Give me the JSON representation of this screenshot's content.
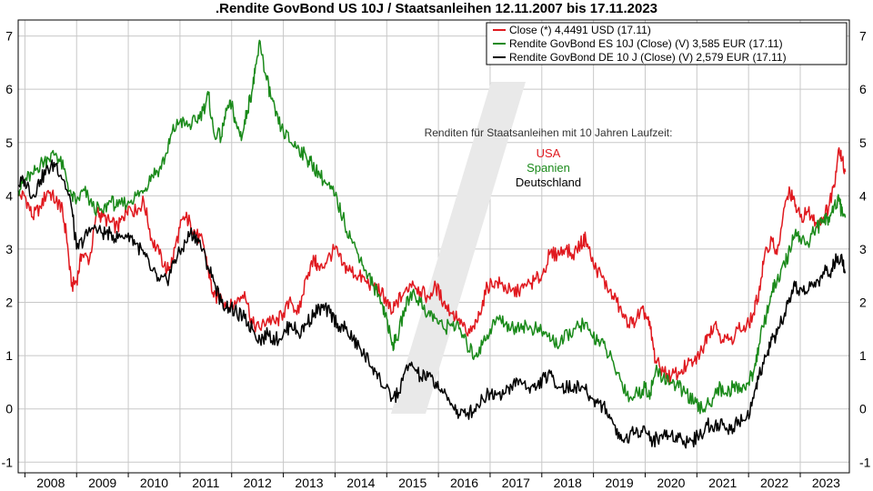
{
  "chart_data": {
    "type": "line",
    "title": ".Rendite GovBond US 10J / Staatsanleihen 12.11.2007 bis 17.11.2023",
    "ylim": [
      -1.2,
      7.3
    ],
    "xlim": [
      2007.87,
      2023.95
    ],
    "y_ticks": [
      -1,
      0,
      1,
      2,
      3,
      4,
      5,
      6,
      7
    ],
    "y_tick_labels": [
      "-1",
      "0",
      "1",
      "2",
      "3",
      "4",
      "5",
      "6",
      "7"
    ],
    "x_ticks": [
      2008,
      2009,
      2010,
      2011,
      2012,
      2013,
      2014,
      2015,
      2016,
      2017,
      2018,
      2019,
      2020,
      2021,
      2022,
      2023
    ],
    "x_tick_labels": [
      "2008",
      "2009",
      "2010",
      "2011",
      "2012",
      "2013",
      "2014",
      "2015",
      "2016",
      "2017",
      "2018",
      "2019",
      "2020",
      "2021",
      "2022",
      "2023"
    ],
    "grid": true,
    "legend_position": "top-right",
    "annotation": {
      "heading": "Renditen für Staatsanleihen mit 10 Jahren Laufzeit:",
      "items": [
        {
          "label": "USA",
          "color": "#e0191f"
        },
        {
          "label": "Spanien",
          "color": "#1a8a1a"
        },
        {
          "label": "Deutschland",
          "color": "#000000"
        }
      ]
    },
    "series": [
      {
        "name": "Close (*) 4,4491 USD (17.11)",
        "color": "#e0191f",
        "x": [
          2007.87,
          2008.0,
          2008.15,
          2008.3,
          2008.45,
          2008.6,
          2008.7,
          2008.8,
          2008.9,
          2009.0,
          2009.1,
          2009.25,
          2009.4,
          2009.5,
          2009.65,
          2009.8,
          2009.9,
          2010.0,
          2010.15,
          2010.3,
          2010.45,
          2010.6,
          2010.75,
          2010.85,
          2011.0,
          2011.1,
          2011.2,
          2011.3,
          2011.45,
          2011.55,
          2011.65,
          2011.8,
          2011.95,
          2012.1,
          2012.25,
          2012.4,
          2012.55,
          2012.7,
          2012.85,
          2013.0,
          2013.15,
          2013.3,
          2013.45,
          2013.6,
          2013.7,
          2013.85,
          2014.0,
          2014.15,
          2014.3,
          2014.45,
          2014.6,
          2014.75,
          2014.9,
          2015.0,
          2015.1,
          2015.2,
          2015.35,
          2015.5,
          2015.65,
          2015.8,
          2015.95,
          2016.1,
          2016.25,
          2016.4,
          2016.55,
          2016.7,
          2016.8,
          2016.95,
          2017.1,
          2017.25,
          2017.4,
          2017.55,
          2017.7,
          2017.85,
          2018.0,
          2018.15,
          2018.3,
          2018.45,
          2018.6,
          2018.75,
          2018.85,
          2019.0,
          2019.15,
          2019.3,
          2019.45,
          2019.6,
          2019.75,
          2019.9,
          2020.0,
          2020.1,
          2020.2,
          2020.35,
          2020.5,
          2020.65,
          2020.8,
          2020.95,
          2021.1,
          2021.2,
          2021.35,
          2021.5,
          2021.65,
          2021.8,
          2021.95,
          2022.1,
          2022.2,
          2022.3,
          2022.45,
          2022.55,
          2022.7,
          2022.8,
          2022.9,
          2023.0,
          2023.15,
          2023.3,
          2023.45,
          2023.55,
          2023.65,
          2023.75,
          2023.8,
          2023.87
        ],
        "values": [
          4.0,
          4.0,
          3.6,
          3.8,
          4.1,
          3.9,
          3.8,
          3.3,
          2.3,
          2.4,
          2.9,
          2.8,
          3.7,
          3.6,
          3.5,
          3.4,
          3.6,
          3.8,
          3.7,
          3.9,
          3.2,
          2.9,
          2.6,
          2.8,
          3.4,
          3.6,
          3.5,
          3.3,
          3.1,
          2.6,
          2.1,
          2.1,
          1.9,
          2.0,
          2.2,
          1.6,
          1.5,
          1.7,
          1.6,
          1.8,
          2.0,
          1.8,
          2.5,
          2.8,
          2.6,
          2.8,
          3.0,
          2.7,
          2.6,
          2.5,
          2.4,
          2.3,
          2.2,
          2.0,
          1.8,
          2.0,
          2.2,
          2.4,
          2.2,
          2.1,
          2.3,
          2.0,
          1.8,
          1.7,
          1.4,
          1.5,
          1.8,
          2.3,
          2.4,
          2.3,
          2.2,
          2.2,
          2.3,
          2.4,
          2.5,
          2.9,
          2.9,
          3.0,
          2.9,
          3.1,
          3.2,
          2.7,
          2.5,
          2.2,
          2.0,
          1.7,
          1.6,
          1.8,
          1.8,
          1.5,
          0.9,
          0.7,
          0.6,
          0.7,
          0.8,
          0.9,
          1.1,
          1.4,
          1.6,
          1.3,
          1.3,
          1.5,
          1.5,
          1.8,
          2.2,
          2.8,
          3.2,
          2.9,
          3.8,
          4.1,
          3.8,
          3.6,
          3.7,
          3.5,
          3.6,
          3.8,
          4.2,
          4.9,
          4.7,
          4.45
        ]
      },
      {
        "name": "Rendite GovBond ES 10J (Close) (V) 3,585 EUR (17.11)",
        "color": "#1a8a1a",
        "x": [
          2007.87,
          2008.0,
          2008.15,
          2008.3,
          2008.45,
          2008.6,
          2008.75,
          2008.9,
          2009.0,
          2009.15,
          2009.3,
          2009.5,
          2009.65,
          2009.8,
          2010.0,
          2010.15,
          2010.3,
          2010.45,
          2010.6,
          2010.75,
          2010.85,
          2011.0,
          2011.15,
          2011.3,
          2011.45,
          2011.55,
          2011.65,
          2011.8,
          2011.9,
          2012.0,
          2012.1,
          2012.2,
          2012.3,
          2012.4,
          2012.45,
          2012.55,
          2012.65,
          2012.75,
          2012.85,
          2013.0,
          2013.15,
          2013.3,
          2013.45,
          2013.55,
          2013.7,
          2013.85,
          2014.0,
          2014.15,
          2014.3,
          2014.45,
          2014.6,
          2014.75,
          2014.9,
          2015.0,
          2015.1,
          2015.2,
          2015.35,
          2015.5,
          2015.65,
          2015.8,
          2015.95,
          2016.1,
          2016.25,
          2016.4,
          2016.55,
          2016.7,
          2016.85,
          2017.0,
          2017.15,
          2017.3,
          2017.45,
          2017.6,
          2017.75,
          2017.9,
          2018.05,
          2018.2,
          2018.35,
          2018.5,
          2018.65,
          2018.8,
          2018.95,
          2019.1,
          2019.25,
          2019.4,
          2019.55,
          2019.7,
          2019.85,
          2020.0,
          2020.1,
          2020.2,
          2020.35,
          2020.5,
          2020.65,
          2020.8,
          2020.95,
          2021.1,
          2021.25,
          2021.4,
          2021.55,
          2021.7,
          2021.85,
          2022.0,
          2022.1,
          2022.2,
          2022.35,
          2022.45,
          2022.55,
          2022.7,
          2022.8,
          2022.9,
          2023.0,
          2023.15,
          2023.3,
          2023.45,
          2023.55,
          2023.65,
          2023.75,
          2023.8,
          2023.87
        ],
        "values": [
          4.1,
          4.3,
          4.4,
          4.6,
          4.7,
          4.8,
          4.5,
          4.0,
          3.9,
          4.1,
          3.8,
          3.7,
          3.9,
          3.8,
          3.9,
          4.0,
          4.1,
          4.4,
          4.5,
          4.8,
          5.2,
          5.4,
          5.3,
          5.4,
          5.6,
          5.9,
          5.2,
          5.1,
          5.6,
          5.7,
          5.3,
          5.1,
          5.6,
          6.0,
          6.3,
          6.9,
          6.3,
          5.9,
          5.5,
          5.2,
          5.0,
          4.9,
          4.7,
          4.6,
          4.4,
          4.2,
          4.0,
          3.6,
          3.2,
          2.9,
          2.6,
          2.3,
          2.0,
          1.7,
          1.2,
          1.3,
          1.9,
          2.2,
          2.0,
          1.8,
          1.7,
          1.5,
          1.6,
          1.5,
          1.2,
          1.0,
          1.2,
          1.5,
          1.7,
          1.6,
          1.5,
          1.6,
          1.5,
          1.5,
          1.4,
          1.3,
          1.2,
          1.4,
          1.5,
          1.6,
          1.4,
          1.3,
          1.1,
          0.8,
          0.5,
          0.2,
          0.3,
          0.4,
          0.3,
          0.7,
          0.6,
          0.5,
          0.4,
          0.3,
          0.1,
          0.0,
          0.1,
          0.4,
          0.3,
          0.4,
          0.4,
          0.5,
          0.7,
          1.2,
          1.8,
          2.2,
          2.4,
          2.7,
          3.0,
          3.3,
          3.2,
          3.1,
          3.4,
          3.5,
          3.6,
          3.8,
          3.9,
          3.7,
          3.59
        ]
      },
      {
        "name": "Rendite GovBond DE 10 J (Close) (V) 2,579 EUR (17.11)",
        "color": "#000000",
        "x": [
          2007.87,
          2008.0,
          2008.15,
          2008.3,
          2008.45,
          2008.6,
          2008.75,
          2008.9,
          2009.0,
          2009.15,
          2009.3,
          2009.5,
          2009.65,
          2009.8,
          2010.0,
          2010.15,
          2010.3,
          2010.45,
          2010.6,
          2010.75,
          2010.9,
          2011.05,
          2011.2,
          2011.35,
          2011.5,
          2011.65,
          2011.8,
          2011.95,
          2012.1,
          2012.25,
          2012.4,
          2012.55,
          2012.7,
          2012.85,
          2013.0,
          2013.15,
          2013.3,
          2013.45,
          2013.6,
          2013.75,
          2013.9,
          2014.05,
          2014.2,
          2014.35,
          2014.5,
          2014.65,
          2014.8,
          2014.95,
          2015.1,
          2015.25,
          2015.35,
          2015.5,
          2015.65,
          2015.8,
          2015.95,
          2016.1,
          2016.25,
          2016.4,
          2016.55,
          2016.7,
          2016.85,
          2017.0,
          2017.15,
          2017.3,
          2017.45,
          2017.6,
          2017.75,
          2017.9,
          2018.05,
          2018.2,
          2018.35,
          2018.5,
          2018.65,
          2018.8,
          2018.95,
          2019.1,
          2019.25,
          2019.4,
          2019.55,
          2019.7,
          2019.85,
          2020.0,
          2020.15,
          2020.3,
          2020.45,
          2020.6,
          2020.75,
          2020.9,
          2021.05,
          2021.2,
          2021.35,
          2021.5,
          2021.65,
          2021.8,
          2021.95,
          2022.1,
          2022.2,
          2022.35,
          2022.45,
          2022.55,
          2022.7,
          2022.8,
          2022.9,
          2023.05,
          2023.2,
          2023.35,
          2023.5,
          2023.6,
          2023.7,
          2023.8,
          2023.87
        ],
        "values": [
          4.2,
          4.3,
          4.0,
          4.3,
          4.5,
          4.6,
          4.3,
          3.8,
          3.0,
          3.2,
          3.4,
          3.3,
          3.3,
          3.2,
          3.3,
          3.1,
          2.9,
          2.6,
          2.4,
          2.4,
          2.8,
          3.0,
          3.3,
          3.2,
          2.8,
          2.4,
          2.0,
          1.9,
          1.8,
          1.7,
          1.5,
          1.3,
          1.4,
          1.3,
          1.4,
          1.6,
          1.4,
          1.6,
          1.8,
          1.9,
          1.8,
          1.6,
          1.5,
          1.3,
          1.1,
          0.9,
          0.7,
          0.4,
          0.2,
          0.3,
          0.7,
          0.8,
          0.6,
          0.6,
          0.5,
          0.3,
          0.1,
          -0.1,
          -0.1,
          0.0,
          0.2,
          0.3,
          0.3,
          0.3,
          0.5,
          0.5,
          0.4,
          0.4,
          0.6,
          0.6,
          0.4,
          0.4,
          0.4,
          0.4,
          0.2,
          0.1,
          0.0,
          -0.3,
          -0.6,
          -0.5,
          -0.4,
          -0.4,
          -0.6,
          -0.5,
          -0.5,
          -0.5,
          -0.6,
          -0.6,
          -0.5,
          -0.3,
          -0.3,
          -0.3,
          -0.4,
          -0.2,
          -0.2,
          0.2,
          0.6,
          1.0,
          1.3,
          1.4,
          1.8,
          2.0,
          2.3,
          2.2,
          2.3,
          2.4,
          2.6,
          2.6,
          2.8,
          2.9,
          2.58
        ]
      }
    ]
  }
}
